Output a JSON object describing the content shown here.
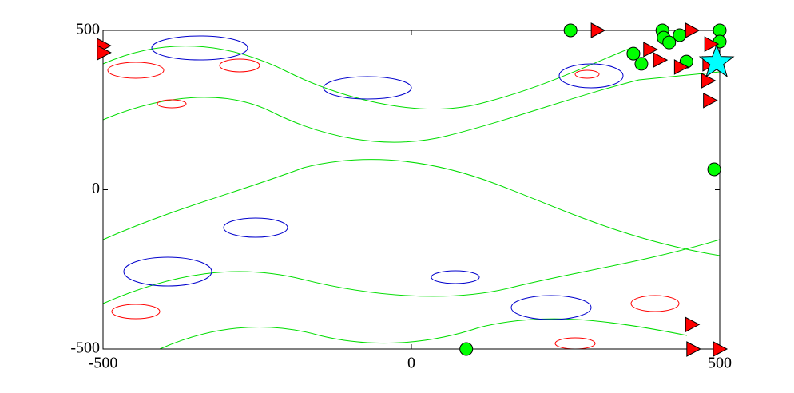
{
  "chart_data": {
    "type": "scatter",
    "xlim": [
      -500,
      500
    ],
    "ylim": [
      -500,
      500
    ],
    "xticks": [
      -500,
      0,
      500
    ],
    "yticks": [
      -500,
      0,
      500
    ],
    "series": [
      {
        "marker": "circle",
        "color": "#00ff00",
        "x": [
          258,
          407,
          500,
          435,
          409,
          418,
          500,
          360,
          373,
          446,
          491,
          89
        ],
        "y": [
          500,
          500,
          500,
          485,
          477,
          462,
          465,
          427,
          395,
          402,
          64,
          -500
        ]
      },
      {
        "marker": "triangle",
        "color": "#ff0000",
        "x": [
          302,
          -499,
          -499,
          387,
          403,
          455,
          437,
          483,
          481,
          484,
          486,
          455,
          457,
          500
        ],
        "y": [
          500,
          452,
          430,
          440,
          407,
          500,
          385,
          395,
          342,
          280,
          457,
          -423,
          -500,
          -500
        ]
      },
      {
        "marker": "star",
        "color": "#00ffff",
        "x": [
          495
        ],
        "y": [
          400
        ]
      }
    ]
  }
}
